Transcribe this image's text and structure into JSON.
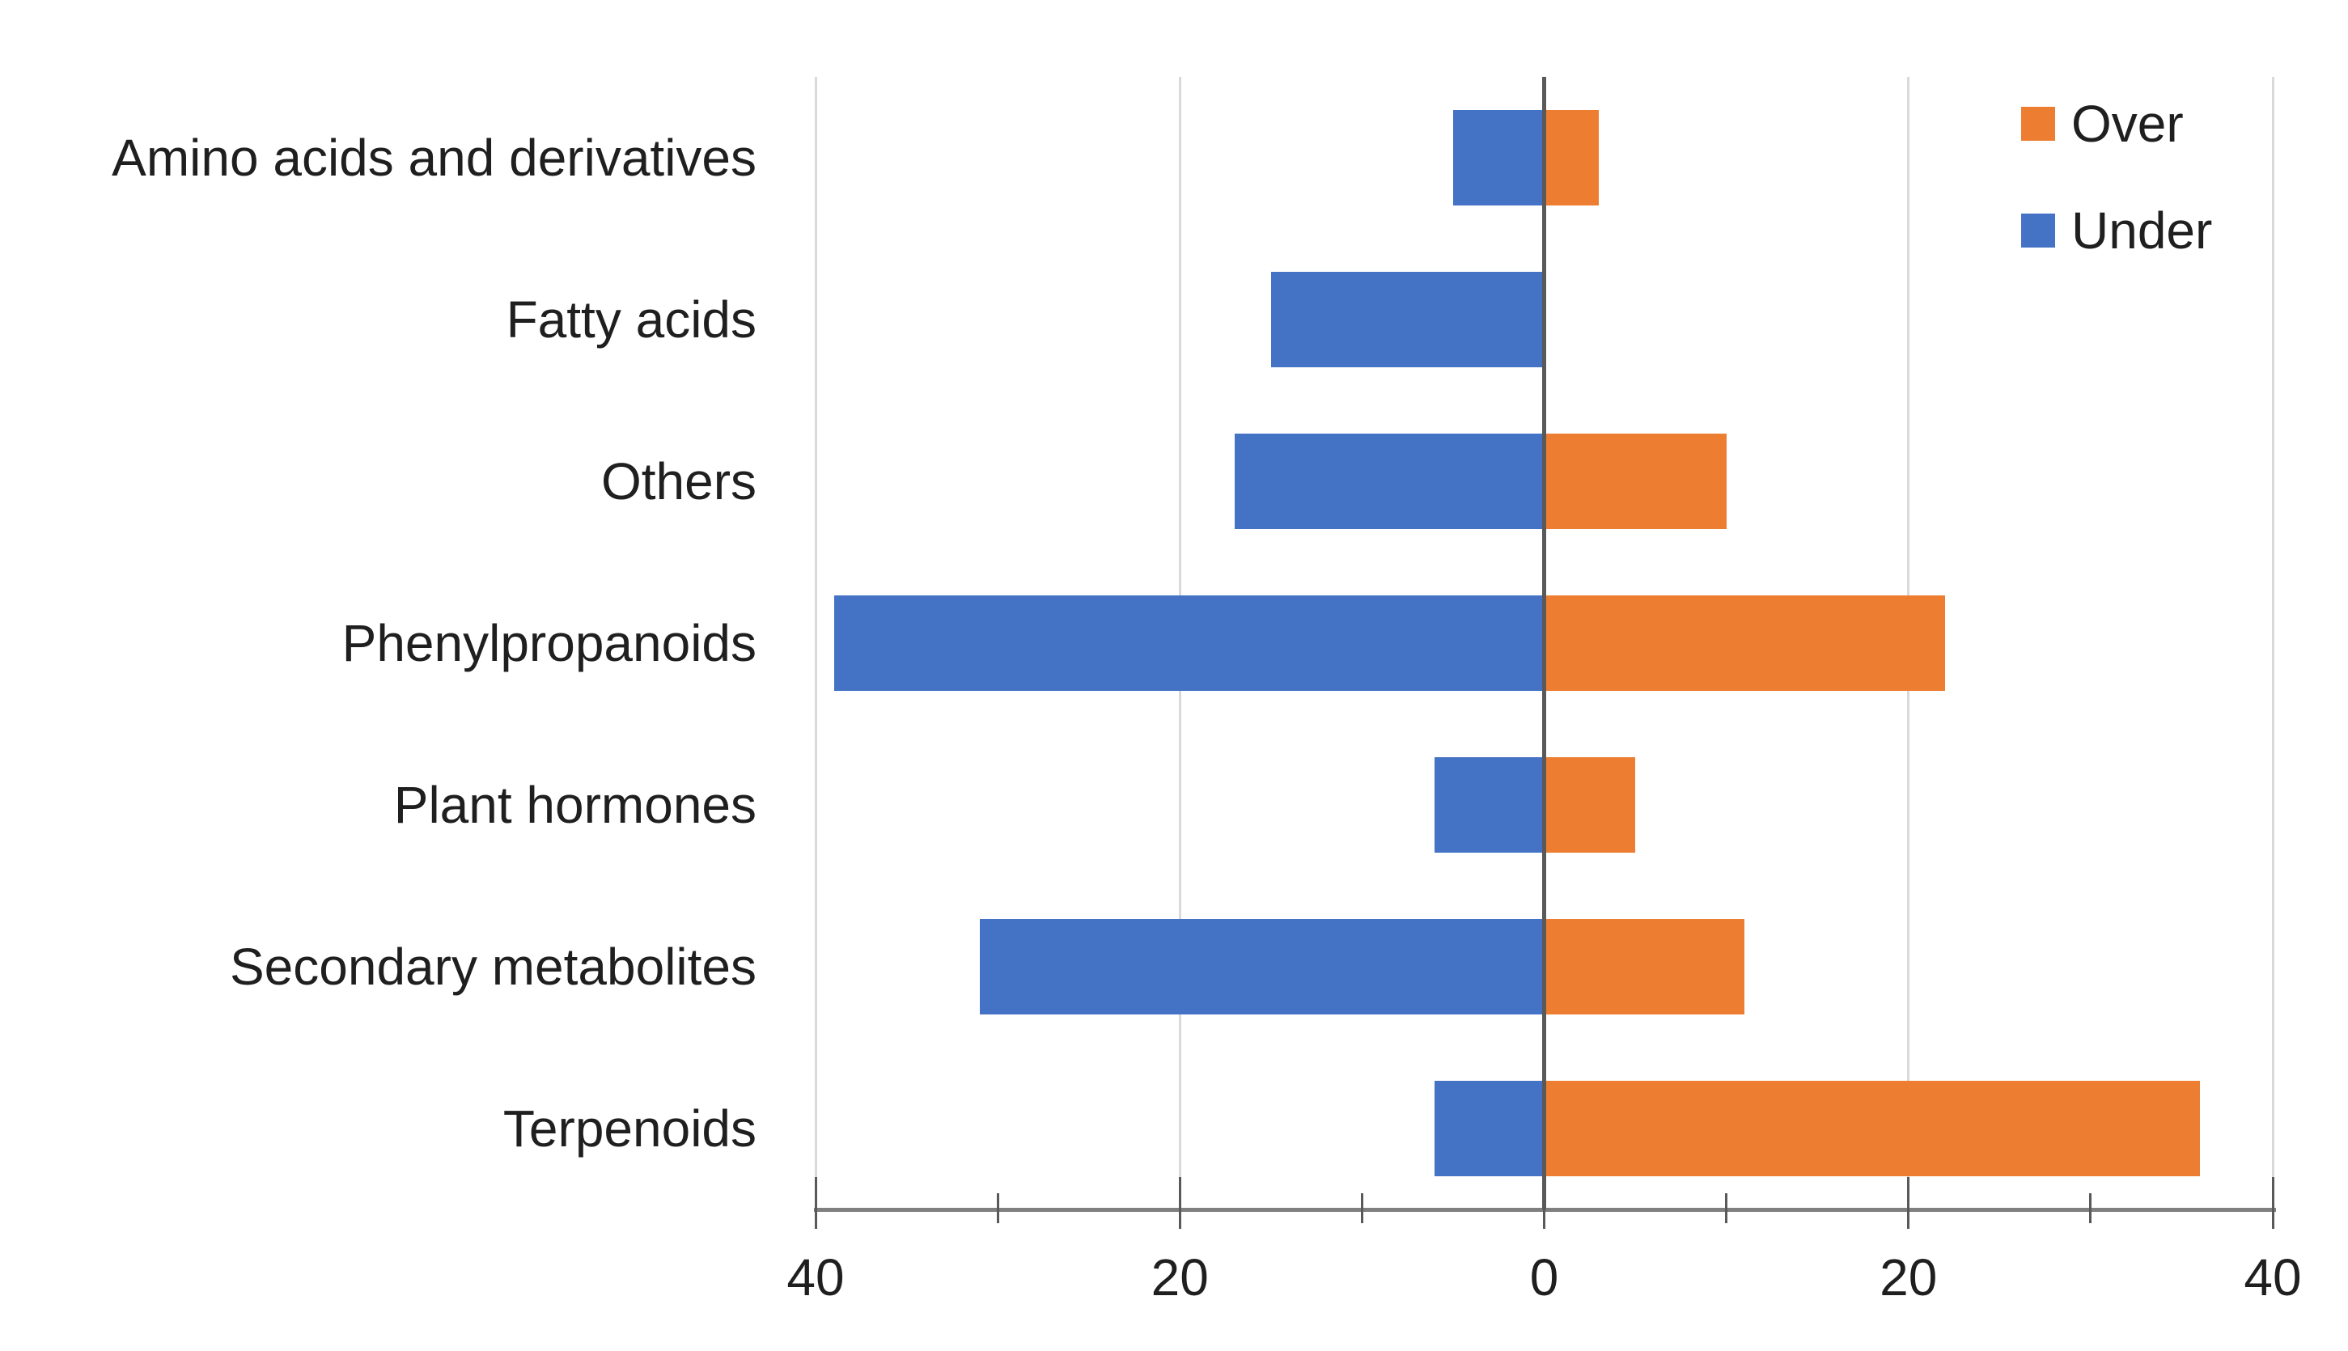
{
  "chart_data": {
    "type": "bar",
    "orientation": "horizontal-diverging",
    "title": "",
    "xlabel": "",
    "ylabel": "",
    "categories": [
      "Amino acids and derivatives",
      "Fatty acids",
      "Others",
      "Phenylpropanoids",
      "Plant hormones",
      "Secondary metabolites",
      "Terpenoids"
    ],
    "series": [
      {
        "name": "Over",
        "color": "#ED7D31",
        "values": [
          3,
          0,
          10,
          22,
          5,
          11,
          36
        ]
      },
      {
        "name": "Under",
        "color": "#4472C4",
        "values": [
          -5,
          -15,
          -17,
          -39,
          -6,
          -31,
          -6
        ]
      }
    ],
    "xlim": [
      -40,
      40
    ],
    "x_tick_values": [
      -40,
      -20,
      0,
      20,
      40
    ],
    "x_tick_labels": [
      "40",
      "20",
      "0",
      "20",
      "40"
    ],
    "x_minor_tick_values": [
      -30,
      -10,
      10,
      30
    ],
    "grid": "vertical-major-gridlines",
    "legend_position": "top-right-inside"
  },
  "colors": {
    "over": "#ED7D31",
    "under": "#4472C4",
    "gridline": "#D9D9D9",
    "zero_line": "#595959",
    "axis_line": "#7F7F7F",
    "tick": "#595959",
    "text": "#1F1F1F",
    "background": "#FFFFFF"
  },
  "legend": {
    "over_label": "Over",
    "under_label": "Under"
  }
}
